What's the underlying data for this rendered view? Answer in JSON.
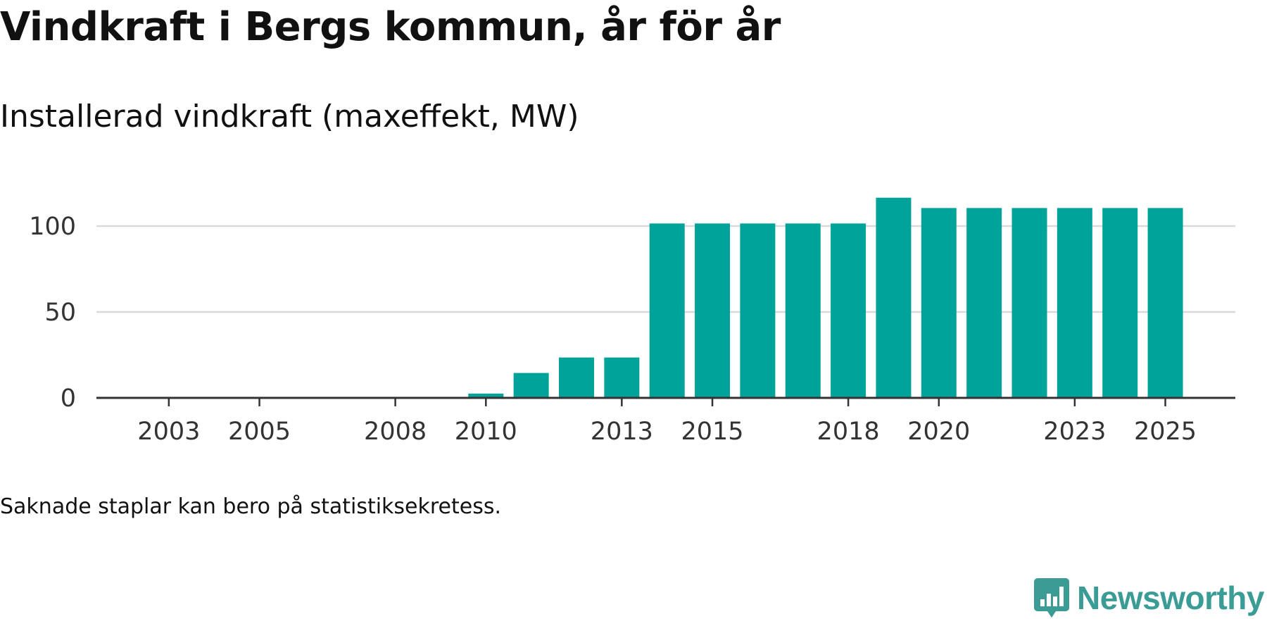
{
  "title": "Vindkraft i Bergs kommun, år för år",
  "footnote": "Saknade staplar kan bero på statistiksekretess.",
  "brand": {
    "name": "Newsworthy",
    "icon": "newsworthy-logo-icon",
    "color": "#3b9c96"
  },
  "colors": {
    "bar": "#00a39a",
    "grid": "#d9d9d9",
    "axis": "#333333"
  },
  "chart_data": {
    "type": "bar",
    "title": "Installerad vindkraft (maxeffekt, MW)",
    "xlabel": "",
    "ylabel": "",
    "categories": [
      2002,
      2003,
      2004,
      2005,
      2006,
      2007,
      2008,
      2009,
      2010,
      2011,
      2012,
      2013,
      2014,
      2015,
      2016,
      2017,
      2018,
      2019,
      2020,
      2021,
      2022,
      2023,
      2024,
      2025
    ],
    "values": [
      0,
      0,
      0,
      0,
      0,
      0,
      0,
      0,
      2.5,
      14.5,
      23.5,
      23.5,
      101.5,
      101.5,
      101.5,
      101.5,
      101.5,
      116.5,
      110.5,
      110.5,
      110.5,
      110.5,
      110.5,
      110.5
    ],
    "x_tick_labels": [
      "2003",
      "2005",
      "2008",
      "2010",
      "2013",
      "2015",
      "2018",
      "2020",
      "2023",
      "2025"
    ],
    "y_ticks": [
      0,
      50,
      100
    ],
    "ylim": [
      0,
      125
    ],
    "grid": true
  }
}
